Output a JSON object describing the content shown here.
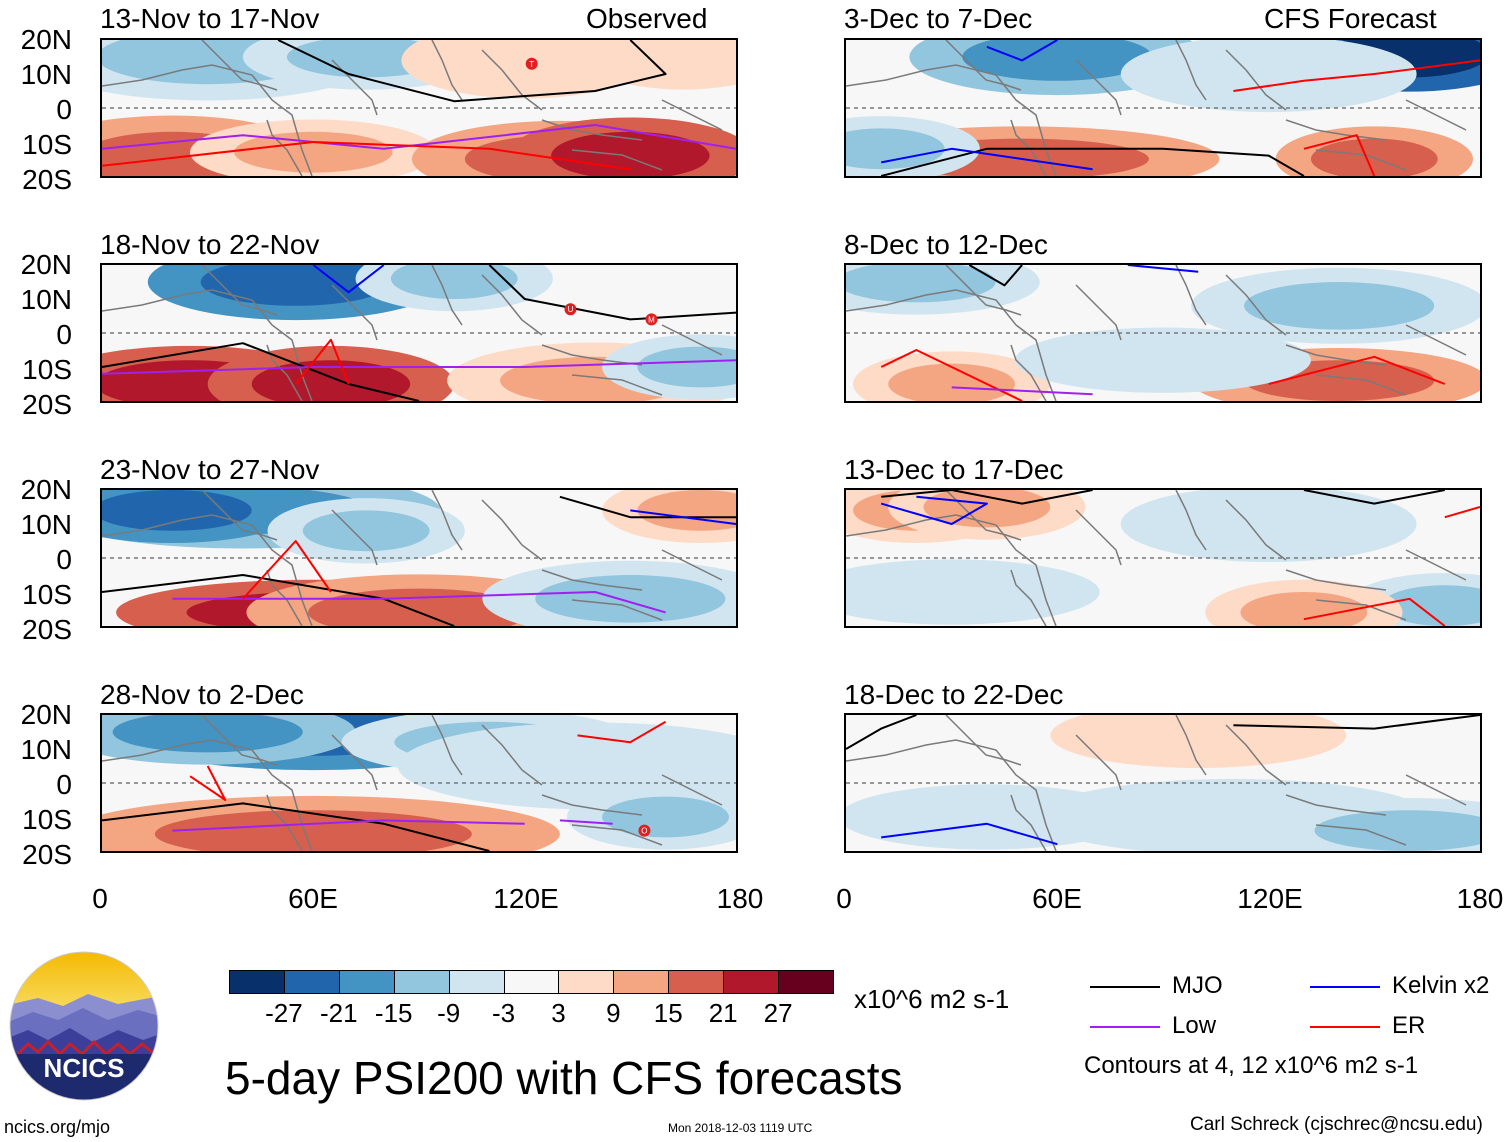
{
  "left_header_right": "Observed",
  "right_header_right": "CFS Forecast",
  "observed_periods": [
    "13-Nov to 17-Nov",
    "18-Nov to 22-Nov",
    "23-Nov to 27-Nov",
    "28-Nov to 2-Dec"
  ],
  "forecast_periods": [
    "3-Dec to 7-Dec",
    "8-Dec to 12-Dec",
    "13-Dec to 17-Dec",
    "18-Dec to 22-Dec"
  ],
  "lat_labels": [
    "20N",
    "10N",
    "0",
    "10S",
    "20S"
  ],
  "lon_labels": [
    "0",
    "60E",
    "120E",
    "180"
  ],
  "colorbar": {
    "colors": [
      "#08306b",
      "#2166ac",
      "#4393c3",
      "#92c5de",
      "#d1e5f0",
      "#f7f7f7",
      "#fddbc7",
      "#f4a582",
      "#d6604d",
      "#b2182b",
      "#67001f"
    ],
    "labels": [
      "-27",
      "-21",
      "-15",
      "-9",
      "-3",
      "3",
      "9",
      "15",
      "21",
      "27"
    ],
    "units": "x10^6 m2 s-1"
  },
  "legend": {
    "items": [
      {
        "label": "MJO",
        "color": "#000000"
      },
      {
        "label": "Kelvin x2",
        "color": "#0000ff"
      },
      {
        "label": "Low",
        "color": "#a020f0"
      },
      {
        "label": "ER",
        "color": "#ff0000"
      }
    ],
    "contours_note": "Contours at 4, 12 x10^6 m2 s-1"
  },
  "logo_text": "NCICS",
  "main_title": "5-day PSI200 with CFS forecasts",
  "footer": {
    "url": "ncics.org/mjo",
    "timestamp": "Mon 2018-12-03 1119 UTC",
    "author": "Carl Schreck (cjschrec@ncsu.edu)"
  },
  "storm_markers": [
    {
      "panel": 0,
      "lon": 122,
      "lat": 13,
      "letter": "T"
    },
    {
      "panel": 1,
      "lon": 133,
      "lat": 7,
      "letter": "U"
    },
    {
      "panel": 1,
      "lon": 156,
      "lat": 4,
      "letter": "M"
    },
    {
      "panel": 3,
      "lon": 154,
      "lat": -14,
      "letter": "O"
    }
  ]
}
